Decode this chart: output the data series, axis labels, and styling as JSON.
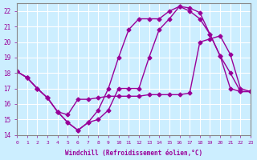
{
  "xlabel": "Windchill (Refroidissement éolien,°C)",
  "background_color": "#cceeff",
  "grid_color": "#ffffff",
  "line_color": "#990099",
  "xlim": [
    0,
    23
  ],
  "ylim": [
    14,
    22.5
  ],
  "yticks": [
    14,
    15,
    16,
    17,
    18,
    19,
    20,
    21,
    22
  ],
  "xticks": [
    0,
    1,
    2,
    3,
    4,
    5,
    6,
    7,
    8,
    9,
    10,
    11,
    12,
    13,
    14,
    15,
    16,
    17,
    18,
    19,
    20,
    21,
    22,
    23
  ],
  "series": [
    {
      "x": [
        0,
        1,
        2,
        3,
        4,
        5,
        6,
        7,
        8,
        9,
        10,
        11,
        12,
        13,
        14,
        15,
        16,
        17,
        18,
        19,
        20,
        21,
        22,
        23
      ],
      "y": [
        18.1,
        17.7,
        17.0,
        16.4,
        15.5,
        14.8,
        14.3,
        14.8,
        15.0,
        15.6,
        17.0,
        17.0,
        17.0,
        19.0,
        20.8,
        21.5,
        22.3,
        22.2,
        21.9,
        20.5,
        19.1,
        17.0,
        16.8,
        16.8
      ]
    },
    {
      "x": [
        0,
        1,
        2,
        3,
        4,
        5,
        6,
        7,
        8,
        9,
        10,
        11,
        12,
        13,
        14,
        15,
        16,
        17,
        18,
        19,
        20,
        21,
        22,
        23
      ],
      "y": [
        18.1,
        17.7,
        17.0,
        16.4,
        15.5,
        15.3,
        16.3,
        16.3,
        16.4,
        16.5,
        16.5,
        16.5,
        16.5,
        16.6,
        16.6,
        16.6,
        16.6,
        16.7,
        20.0,
        20.2,
        20.4,
        19.2,
        17.0,
        16.8
      ]
    },
    {
      "x": [
        0,
        1,
        2,
        3,
        4,
        5,
        6,
        7,
        8,
        9,
        10,
        11,
        12,
        13,
        14,
        15,
        16,
        17,
        18,
        19,
        20,
        21,
        22,
        23
      ],
      "y": [
        18.1,
        17.7,
        17.0,
        16.4,
        15.5,
        14.8,
        14.3,
        14.8,
        15.6,
        17.0,
        19.0,
        20.8,
        21.5,
        21.5,
        21.5,
        22.0,
        22.3,
        22.0,
        21.5,
        20.5,
        19.1,
        18.0,
        16.8,
        16.8
      ]
    }
  ]
}
